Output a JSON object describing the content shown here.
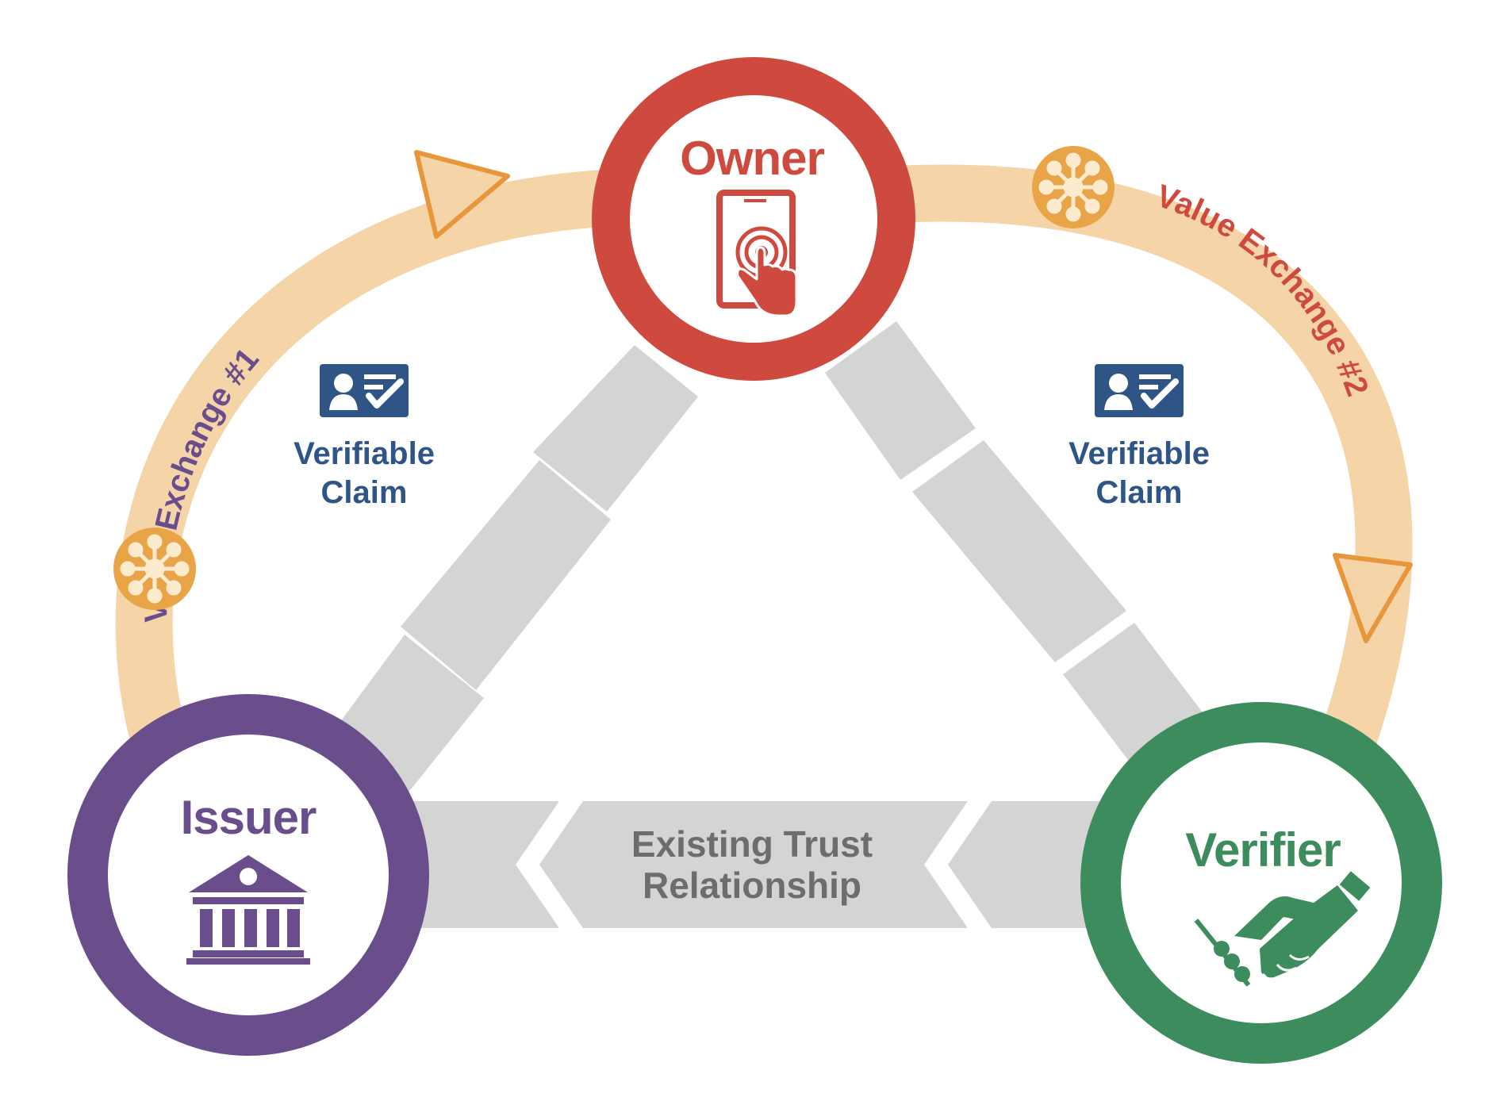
{
  "nodes": {
    "owner": {
      "label": "Owner",
      "icon": "smartphone-touch-icon",
      "color": "#cf4a3e"
    },
    "issuer": {
      "label": "Issuer",
      "icon": "bank-building-icon",
      "color": "#6a4e8c"
    },
    "verifier": {
      "label": "Verifier",
      "icon": "handshake-icon",
      "color": "#3d8c5e"
    }
  },
  "exchanges": [
    {
      "label": "Value Exchange #1",
      "color": "#6a4e8c",
      "arc_color": "#f5d5a8",
      "node_icon": "network-hub-icon"
    },
    {
      "label": "Value Exchange #2",
      "color": "#cf4a3e",
      "arc_color": "#f5d5a8",
      "node_icon": "network-hub-icon"
    }
  ],
  "claims": [
    {
      "line1": "Verifiable",
      "line2": "Claim",
      "icon": "id-card-check-icon",
      "color": "#2f5587"
    },
    {
      "line1": "Verifiable",
      "line2": "Claim",
      "icon": "id-card-check-icon",
      "color": "#2f5587"
    }
  ],
  "trust": {
    "line1": "Existing Trust",
    "line2": "Relationship",
    "color": "#6d6d6d",
    "band_color": "#d4d4d4"
  }
}
